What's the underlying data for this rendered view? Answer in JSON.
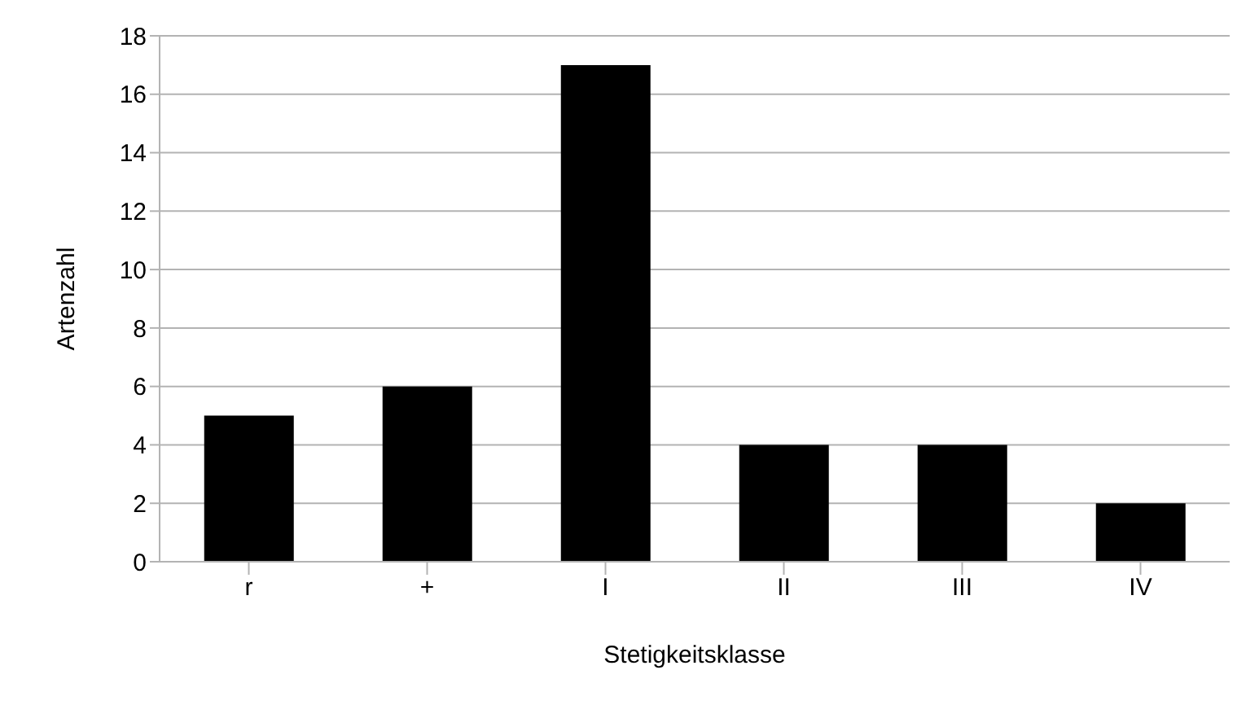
{
  "chart_data": {
    "type": "bar",
    "xlabel": "Stetigkeitsklasse",
    "ylabel": "Artenzahl",
    "categories": [
      "r",
      "+",
      "I",
      "II",
      "III",
      "IV"
    ],
    "values": [
      5,
      6,
      17,
      4,
      4,
      2
    ],
    "color": "#000000",
    "ylim": [
      0,
      18
    ],
    "yticks": [
      0,
      2,
      4,
      6,
      8,
      10,
      12,
      14,
      16,
      18
    ],
    "grid": "y"
  }
}
